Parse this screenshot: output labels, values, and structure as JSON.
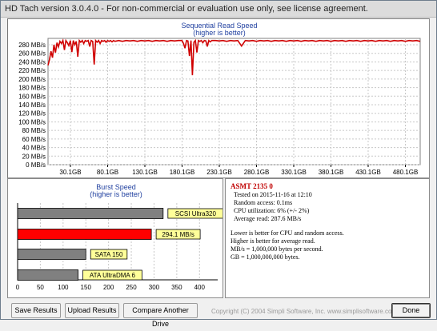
{
  "window": {
    "title": "HD Tach version 3.0.4.0  - For non-commercial or evaluation use only, see license agreement."
  },
  "read_chart": {
    "title": "Sequential Read Speed",
    "subtitle": "(higher is better)"
  },
  "burst_chart": {
    "title": "Burst Speed",
    "subtitle": "(higher is better)"
  },
  "info": {
    "drive_name": "ASMT 2135 0",
    "lines": [
      "Tested on 2015-11-16 at 12:10",
      "Random access: 0.1ms",
      "CPU utilization: 6% (+/- 2%)",
      "Average read: 287.6 MB/s",
      "Lower is better for CPU and random access.",
      "Higher is better for average read.",
      "MB/s = 1,000,000 bytes per second.",
      "GB = 1,000,000,000 bytes."
    ]
  },
  "buttons": {
    "save": "Save Results",
    "upload": "Upload Results",
    "compare": "Compare Another Drive",
    "done": "Done"
  },
  "footer": {
    "copyright": "Copyright (C) 2004 Simpli Software, Inc. www.simplisoftware.com"
  },
  "colors": {
    "read_line": "#d00000",
    "burst_bar": "#ff0000",
    "reference_bar": "#808080",
    "label_bg": "#ffff99",
    "chart_title": "#1f3f9f"
  },
  "chart_data": [
    {
      "type": "line",
      "title": "Sequential Read Speed",
      "subtitle": "(higher is better)",
      "xlabel": "",
      "ylabel": "",
      "x_ticks": [
        "30.1GB",
        "80.1GB",
        "130.1GB",
        "180.1GB",
        "230.1GB",
        "280.1GB",
        "330.1GB",
        "380.1GB",
        "430.1GB",
        "480.1GB"
      ],
      "y_ticks": [
        "0 MB/s",
        "20 MB/s",
        "40 MB/s",
        "60 MB/s",
        "80 MB/s",
        "100 MB/s",
        "120 MB/s",
        "140 MB/s",
        "160 MB/s",
        "180 MB/s",
        "200 MB/s",
        "220 MB/s",
        "240 MB/s",
        "260 MB/s",
        "280 MB/s"
      ],
      "xlim": [
        0,
        500
      ],
      "ylim": [
        0,
        295
      ],
      "grid": true,
      "series": [
        {
          "x": [
            0,
            2,
            4,
            6,
            8,
            10,
            12,
            14,
            16,
            18,
            20,
            22,
            24,
            26,
            28,
            30,
            32,
            34,
            36,
            38,
            40,
            42,
            44,
            46,
            48,
            50,
            52,
            54,
            56,
            58,
            60,
            62,
            64,
            66,
            68,
            70,
            72,
            74,
            76,
            78,
            80,
            82,
            84,
            86,
            88,
            90,
            95,
            100,
            105,
            110,
            115,
            120,
            125,
            130,
            135,
            140,
            145,
            150,
            155,
            160,
            165,
            170,
            175,
            180,
            182,
            184,
            186,
            188,
            190,
            192,
            194,
            196,
            198,
            200,
            202,
            204,
            206,
            208,
            210,
            212,
            214,
            216,
            218,
            220,
            225,
            230,
            235,
            240,
            245,
            250,
            255,
            260,
            265,
            270,
            275,
            280,
            285,
            290,
            295,
            300,
            305,
            310,
            315,
            320,
            325,
            330,
            335,
            340,
            345,
            350,
            355,
            360,
            365,
            370,
            375,
            380,
            385,
            390,
            395,
            400,
            405,
            410,
            415,
            420,
            425,
            430,
            435,
            440,
            445,
            450,
            455,
            460,
            465,
            470,
            475,
            480,
            485,
            490,
            495,
            500
          ],
          "y": [
            232,
            246,
            265,
            250,
            280,
            262,
            285,
            275,
            288,
            283,
            290,
            268,
            290,
            285,
            278,
            290,
            263,
            290,
            280,
            288,
            252,
            290,
            286,
            290,
            283,
            290,
            288,
            290,
            276,
            290,
            288,
            234,
            290,
            286,
            290,
            283,
            290,
            288,
            290,
            286,
            290,
            288,
            290,
            287,
            290,
            288,
            290,
            288,
            290,
            289,
            290,
            288,
            290,
            289,
            290,
            288,
            290,
            289,
            290,
            288,
            290,
            289,
            290,
            290,
            283,
            272,
            290,
            289,
            254,
            290,
            209,
            286,
            290,
            262,
            290,
            288,
            290,
            285,
            290,
            289,
            276,
            290,
            287,
            290,
            290,
            289,
            290,
            288,
            290,
            289,
            290,
            277,
            290,
            289,
            290,
            288,
            290,
            289,
            290,
            288,
            290,
            289,
            290,
            288,
            290,
            289,
            290,
            288,
            290,
            289,
            290,
            288,
            290,
            289,
            290,
            288,
            290,
            289,
            290,
            288,
            290,
            289,
            290,
            288,
            290,
            289,
            290,
            288,
            290,
            289,
            290,
            288,
            290,
            289,
            290,
            288,
            290,
            289,
            290,
            288
          ]
        }
      ]
    },
    {
      "type": "bar",
      "title": "Burst Speed",
      "subtitle": "(higher is better)",
      "orientation": "horizontal",
      "x_ticks": [
        "0",
        "50",
        "100",
        "150",
        "200",
        "250",
        "300",
        "350",
        "400"
      ],
      "xlim": [
        0,
        440
      ],
      "categories": [
        "SCSI Ultra320",
        "294.1 MB/s",
        "SATA 150",
        "ATA UltraDMA 6"
      ],
      "values": [
        320,
        294.1,
        150,
        133
      ]
    }
  ]
}
